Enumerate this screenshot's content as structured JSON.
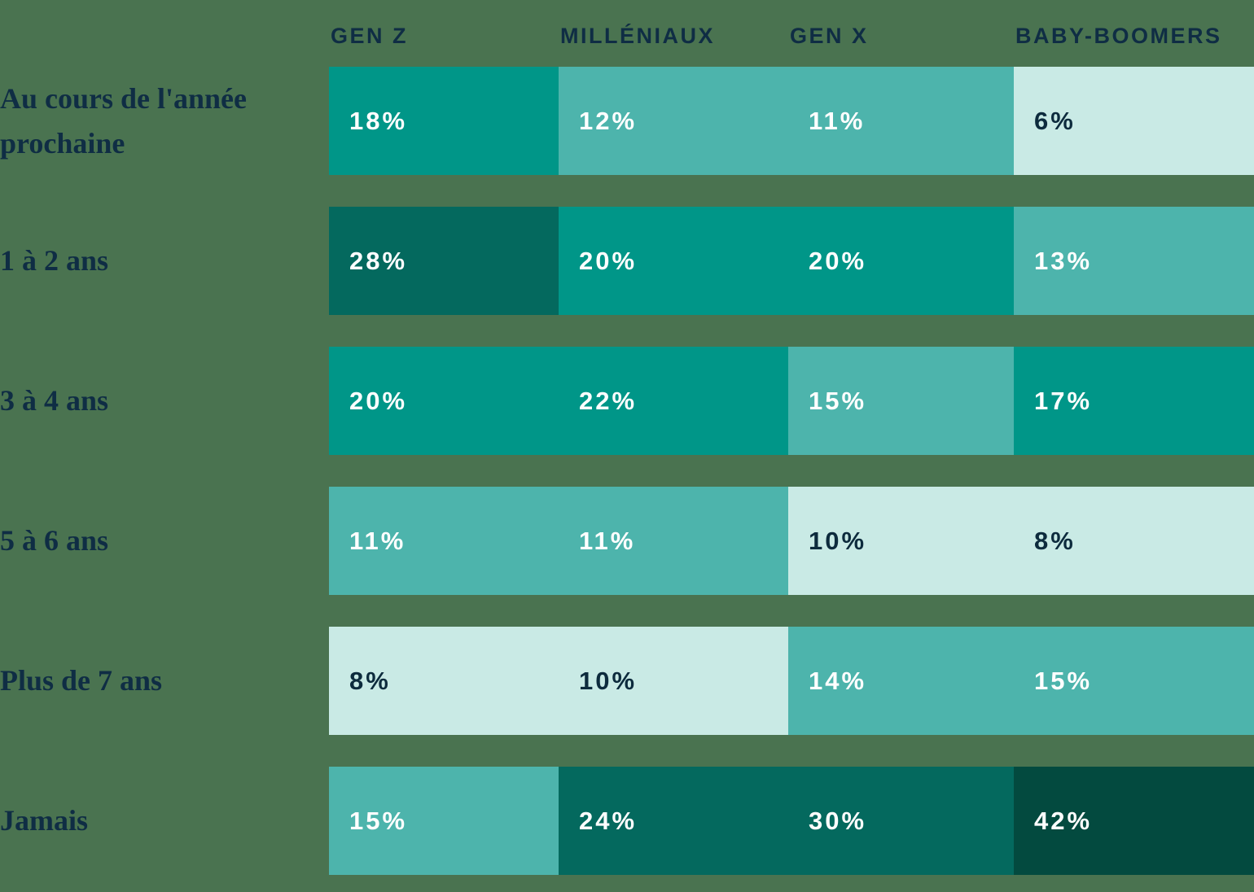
{
  "palette": {
    "background": "#4A7350",
    "text_navy": "#0F2D44",
    "cell_text_light": "#FFFFFF",
    "cell_text_dark": "#0D2B3D",
    "scale_lightest": "#C9EAE5",
    "scale_light": "#4DB4AC",
    "scale_medium": "#009688",
    "scale_dark": "#04695E",
    "scale_darkest": "#034A3F"
  },
  "table": {
    "columns": [
      {
        "label": "GEN Z"
      },
      {
        "label": "MILLÉNIAUX"
      },
      {
        "label": "GEN X"
      },
      {
        "label": "BABY-BOOMERS"
      }
    ],
    "rows": [
      {
        "label": "Au cours de l'année prochaine",
        "cells": [
          {
            "display": "18%",
            "value": 18,
            "bg": "#009688",
            "fg": "#FFFFFF"
          },
          {
            "display": "12%",
            "value": 12,
            "bg": "#4DB4AC",
            "fg": "#FFFFFF"
          },
          {
            "display": "11%",
            "value": 11,
            "bg": "#4DB4AC",
            "fg": "#FFFFFF"
          },
          {
            "display": "6%",
            "value": 6,
            "bg": "#C9EAE5",
            "fg": "#0D2B3D"
          }
        ]
      },
      {
        "label": "1 à 2 ans",
        "cells": [
          {
            "display": "28%",
            "value": 28,
            "bg": "#04695E",
            "fg": "#FFFFFF"
          },
          {
            "display": "20%",
            "value": 20,
            "bg": "#009688",
            "fg": "#FFFFFF"
          },
          {
            "display": "20%",
            "value": 20,
            "bg": "#009688",
            "fg": "#FFFFFF"
          },
          {
            "display": "13%",
            "value": 13,
            "bg": "#4DB4AC",
            "fg": "#FFFFFF"
          }
        ]
      },
      {
        "label": "3 à 4 ans",
        "cells": [
          {
            "display": "20%",
            "value": 20,
            "bg": "#009688",
            "fg": "#FFFFFF"
          },
          {
            "display": "22%",
            "value": 22,
            "bg": "#009688",
            "fg": "#FFFFFF"
          },
          {
            "display": "15%",
            "value": 15,
            "bg": "#4DB4AC",
            "fg": "#FFFFFF"
          },
          {
            "display": "17%",
            "value": 17,
            "bg": "#009688",
            "fg": "#FFFFFF"
          }
        ]
      },
      {
        "label": "5 à 6 ans",
        "cells": [
          {
            "display": "11%",
            "value": 11,
            "bg": "#4DB4AC",
            "fg": "#FFFFFF"
          },
          {
            "display": "11%",
            "value": 11,
            "bg": "#4DB4AC",
            "fg": "#FFFFFF"
          },
          {
            "display": "10%",
            "value": 10,
            "bg": "#C9EAE5",
            "fg": "#0D2B3D"
          },
          {
            "display": "8%",
            "value": 8,
            "bg": "#C9EAE5",
            "fg": "#0D2B3D"
          }
        ]
      },
      {
        "label": "Plus de 7 ans",
        "cells": [
          {
            "display": "8%",
            "value": 8,
            "bg": "#C9EAE5",
            "fg": "#0D2B3D"
          },
          {
            "display": "10%",
            "value": 10,
            "bg": "#C9EAE5",
            "fg": "#0D2B3D"
          },
          {
            "display": "14%",
            "value": 14,
            "bg": "#4DB4AC",
            "fg": "#FFFFFF"
          },
          {
            "display": "15%",
            "value": 15,
            "bg": "#4DB4AC",
            "fg": "#FFFFFF"
          }
        ]
      },
      {
        "label": "Jamais",
        "cells": [
          {
            "display": "15%",
            "value": 15,
            "bg": "#4DB4AC",
            "fg": "#FFFFFF"
          },
          {
            "display": "24%",
            "value": 24,
            "bg": "#04695E",
            "fg": "#FFFFFF"
          },
          {
            "display": "30%",
            "value": 30,
            "bg": "#04695E",
            "fg": "#FFFFFF"
          },
          {
            "display": "42%",
            "value": 42,
            "bg": "#034A3F",
            "fg": "#FFFFFF"
          }
        ]
      }
    ]
  },
  "chart_data": {
    "type": "heatmap",
    "columns": [
      "GEN Z",
      "MILLÉNIAUX",
      "GEN X",
      "BABY-BOOMERS"
    ],
    "rows": [
      "Au cours de l'année prochaine",
      "1 à 2 ans",
      "3 à 4 ans",
      "5 à 6 ans",
      "Plus de 7 ans",
      "Jamais"
    ],
    "values_percent": [
      [
        18,
        12,
        11,
        6
      ],
      [
        28,
        20,
        20,
        13
      ],
      [
        20,
        22,
        15,
        17
      ],
      [
        11,
        11,
        10,
        8
      ],
      [
        8,
        10,
        14,
        15
      ],
      [
        15,
        24,
        30,
        42
      ]
    ],
    "unit": "%",
    "legend_position": "none",
    "grid": false,
    "color_scale": [
      {
        "range": "<=10",
        "color": "#C9EAE5"
      },
      {
        "range": "11-15",
        "color": "#4DB4AC"
      },
      {
        "range": "16-22",
        "color": "#009688"
      },
      {
        "range": "23-30",
        "color": "#04695E"
      },
      {
        "range": ">30",
        "color": "#034A3F"
      }
    ]
  }
}
